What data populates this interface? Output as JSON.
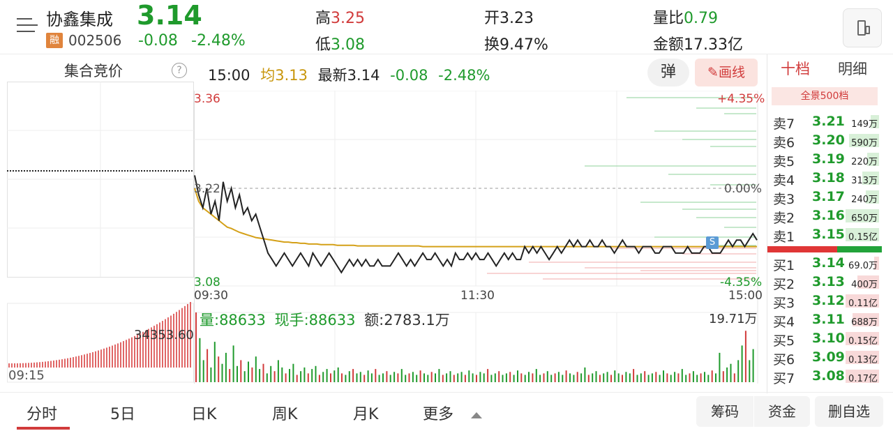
{
  "header": {
    "stock_name": "协鑫集成",
    "price": "3.14",
    "margin_badge": "融",
    "code": "002506",
    "change": "-0.08",
    "change_pct": "-2.48%",
    "stats": [
      {
        "label": "高",
        "value": "3.25",
        "tone": "red"
      },
      {
        "label": "开",
        "value": "3.23",
        "tone": "plain"
      },
      {
        "label": "量比",
        "value": "0.79",
        "tone": "green"
      },
      {
        "label": "低",
        "value": "3.08",
        "tone": "green"
      },
      {
        "label": "换",
        "value": "9.47%",
        "tone": "plain"
      },
      {
        "label": "金额",
        "value": "17.33亿",
        "tone": "plain"
      }
    ]
  },
  "auction": {
    "title": "集合竞价",
    "help": "?",
    "value_label": "34353.60",
    "time_label": "09:15"
  },
  "chart_info": {
    "time": "15:00",
    "avg_label": "均",
    "avg_value": "3.13",
    "latest_label": "最新",
    "latest_value": "3.14",
    "change": "-0.08",
    "change_pct": "-2.48%",
    "popup_btn": "弹",
    "draw_btn": "画线"
  },
  "chart_data": {
    "type": "line",
    "x_ticks": [
      "09:30",
      "11:30",
      "15:00"
    ],
    "y_max": "3.36",
    "y_min": "3.08",
    "y_ref": "3.22",
    "pct_max": "+4.35%",
    "pct_zero": "0.00%",
    "pct_min": "-4.35%",
    "ylim": [
      3.08,
      3.36
    ],
    "prev_close": 3.22,
    "signal_label": "S",
    "series": [
      {
        "values": [
          3.24,
          3.21,
          3.19,
          3.22,
          3.18,
          3.2,
          3.17,
          3.23,
          3.2,
          3.22,
          3.19,
          3.21,
          3.18,
          3.19,
          3.17,
          3.18,
          3.16,
          3.14,
          3.12,
          3.11,
          3.1,
          3.11,
          3.12,
          3.11,
          3.1,
          3.11,
          3.12,
          3.11,
          3.1,
          3.12,
          3.11,
          3.1,
          3.11,
          3.12,
          3.11,
          3.1,
          3.09,
          3.1,
          3.11,
          3.1,
          3.11,
          3.1,
          3.11,
          3.1,
          3.1,
          3.11,
          3.1,
          3.1,
          3.1,
          3.11,
          3.12,
          3.11,
          3.1,
          3.11,
          3.1,
          3.11,
          3.12,
          3.11,
          3.11,
          3.12,
          3.11,
          3.1,
          3.11,
          3.1,
          3.12,
          3.11,
          3.11,
          3.12,
          3.11,
          3.12,
          3.11,
          3.11,
          3.12,
          3.11,
          3.1,
          3.11,
          3.12,
          3.11,
          3.12,
          3.11,
          3.11,
          3.13,
          3.12,
          3.13,
          3.12,
          3.13,
          3.12,
          3.11,
          3.12,
          3.13,
          3.12,
          3.13,
          3.14,
          3.13,
          3.14,
          3.13,
          3.13,
          3.14,
          3.13,
          3.13,
          3.14,
          3.13,
          3.13,
          3.12,
          3.13,
          3.14,
          3.13,
          3.13,
          3.13,
          3.12,
          3.13,
          3.13,
          3.13,
          3.12,
          3.12,
          3.13,
          3.13,
          3.13,
          3.12,
          3.12,
          3.12,
          3.13,
          3.12,
          3.12,
          3.12,
          3.13,
          3.13,
          3.12,
          3.12,
          3.12,
          3.13,
          3.14,
          3.13,
          3.14,
          3.14,
          3.13,
          3.14,
          3.15,
          3.14
        ]
      },
      {
        "values": [
          3.22,
          3.2,
          3.19,
          3.185,
          3.18,
          3.175,
          3.17,
          3.165,
          3.16,
          3.158,
          3.155,
          3.152,
          3.15,
          3.148,
          3.146,
          3.144,
          3.143,
          3.142,
          3.141,
          3.14,
          3.139,
          3.138,
          3.137,
          3.137,
          3.136,
          3.136,
          3.135,
          3.135,
          3.134,
          3.134,
          3.134,
          3.133,
          3.133,
          3.133,
          3.133,
          3.132,
          3.132,
          3.132,
          3.132,
          3.132,
          3.131,
          3.131,
          3.131,
          3.131,
          3.131,
          3.131,
          3.131,
          3.131,
          3.131,
          3.131,
          3.131,
          3.131,
          3.131,
          3.131,
          3.131,
          3.131,
          3.13,
          3.13,
          3.13,
          3.13,
          3.13,
          3.13,
          3.13,
          3.13,
          3.13,
          3.13,
          3.13,
          3.13,
          3.13,
          3.13,
          3.13,
          3.13,
          3.13,
          3.13,
          3.13,
          3.13,
          3.13,
          3.13,
          3.13,
          3.13,
          3.13,
          3.13,
          3.13,
          3.13,
          3.13,
          3.13,
          3.13,
          3.13,
          3.13,
          3.13,
          3.13,
          3.13,
          3.13,
          3.13,
          3.13,
          3.13,
          3.13,
          3.13,
          3.13,
          3.13,
          3.13,
          3.13,
          3.13,
          3.13,
          3.13,
          3.13,
          3.13,
          3.13,
          3.13,
          3.13,
          3.13,
          3.13,
          3.13,
          3.13,
          3.13,
          3.13,
          3.13,
          3.13,
          3.13,
          3.13,
          3.13,
          3.13,
          3.13,
          3.13,
          3.13,
          3.13,
          3.13,
          3.13,
          3.13,
          3.13,
          3.13,
          3.13,
          3.13,
          3.13,
          3.13,
          3.13,
          3.13,
          3.13,
          3.13
        ]
      }
    ]
  },
  "volume_info": {
    "vol_label": "量:88633",
    "hand_label": "现手:88633",
    "amount_label": "额:2783.1万",
    "max_label": "19.71万",
    "bars": [
      95,
      60,
      30,
      45,
      20,
      55,
      35,
      25,
      40,
      18,
      50,
      22,
      30,
      15,
      28,
      20,
      35,
      18,
      25,
      12,
      22,
      15,
      30,
      20,
      12,
      18,
      25,
      10,
      15,
      20,
      12,
      18,
      22,
      10,
      14,
      18,
      12,
      16,
      20,
      12,
      10,
      15,
      18,
      12,
      14,
      10,
      16,
      12,
      18,
      10,
      12,
      15,
      10,
      14,
      12,
      18,
      10,
      12,
      14,
      10,
      16,
      12,
      10,
      14,
      12,
      18,
      10,
      12,
      15,
      10,
      12,
      14,
      10,
      16,
      12,
      10,
      14,
      12,
      18,
      10,
      12,
      15,
      10,
      12,
      14,
      10,
      16,
      12,
      10,
      14,
      12,
      18,
      10,
      12,
      15,
      10,
      12,
      14,
      10,
      16,
      12,
      10,
      14,
      12,
      20,
      10,
      12,
      15,
      10,
      12,
      14,
      10,
      16,
      12,
      10,
      14,
      12,
      18,
      10,
      12,
      15,
      10,
      12,
      14,
      10,
      16,
      12,
      10,
      14,
      12,
      18,
      10,
      12,
      15,
      10,
      12,
      14,
      10,
      16,
      12,
      40,
      15,
      20,
      25,
      12,
      30,
      50,
      70,
      30,
      45
    ]
  },
  "order_book": {
    "tab_active": "十档",
    "tab_other": "明细",
    "full_label": "全景500档",
    "sells": [
      {
        "label": "卖7",
        "price": "3.21",
        "vol": "149万",
        "bar": 0.25
      },
      {
        "label": "卖6",
        "price": "3.20",
        "vol": "590万",
        "bar": 0.9
      },
      {
        "label": "卖5",
        "price": "3.19",
        "vol": "220万",
        "bar": 0.35
      },
      {
        "label": "卖4",
        "price": "3.18",
        "vol": "313万",
        "bar": 0.5
      },
      {
        "label": "卖3",
        "price": "3.17",
        "vol": "240万",
        "bar": 0.4
      },
      {
        "label": "卖2",
        "price": "3.16",
        "vol": "650万",
        "bar": 1.0
      },
      {
        "label": "卖1",
        "price": "3.15",
        "vol": "0.15亿",
        "bar": 1.0
      }
    ],
    "buys": [
      {
        "label": "买1",
        "price": "3.14",
        "vol": "69.0万",
        "bar": 0.15
      },
      {
        "label": "买2",
        "price": "3.13",
        "vol": "400万",
        "bar": 0.65
      },
      {
        "label": "买3",
        "price": "3.12",
        "vol": "0.11亿",
        "bar": 1.0
      },
      {
        "label": "买4",
        "price": "3.11",
        "vol": "688万",
        "bar": 0.8
      },
      {
        "label": "买5",
        "price": "3.10",
        "vol": "0.15亿",
        "bar": 1.0
      },
      {
        "label": "买6",
        "price": "3.09",
        "vol": "0.13亿",
        "bar": 1.0
      },
      {
        "label": "买7",
        "price": "3.08",
        "vol": "0.17亿",
        "bar": 1.0
      }
    ]
  },
  "bottom": {
    "tabs": [
      "分时",
      "5日",
      "日K",
      "周K",
      "月K",
      "更多"
    ],
    "buttons": [
      "筹码",
      "资金",
      "删自选"
    ]
  },
  "colors": {
    "red": "#d13b3b",
    "green": "#1f9a2c",
    "avg_line": "#d4a017",
    "price_line": "#222222"
  }
}
